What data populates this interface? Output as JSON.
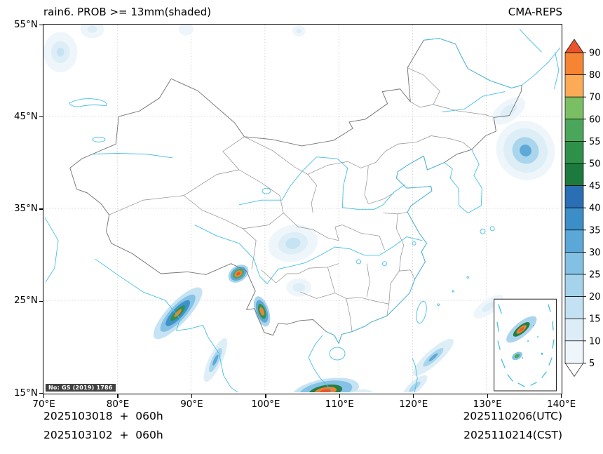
{
  "header": {
    "title": "rain6. PROB >= 13mm(shaded)",
    "source": "CMA-REPS"
  },
  "footer": {
    "init_line1": "2025103018  +  060h",
    "init_line2": "2025103102  +  060h",
    "valid_utc": "2025110206(UTC)",
    "valid_cst": "2025110214(CST)"
  },
  "map": {
    "license_label": "No: GS (2019) 1786"
  },
  "axes": {
    "x_tick_labels": [
      "70°E",
      "80°E",
      "90°E",
      "100°E",
      "110°E",
      "120°E",
      "130°E",
      "140°E"
    ],
    "x_tick_values": [
      70,
      80,
      90,
      100,
      110,
      120,
      130,
      140
    ],
    "y_tick_labels": [
      "55°N",
      "45°N",
      "35°N",
      "25°N",
      "15°N"
    ],
    "y_tick_values": [
      55,
      45,
      35,
      25,
      15
    ],
    "lon_range": [
      70,
      140
    ],
    "lat_range": [
      15,
      55
    ]
  },
  "colorbar": {
    "tick_labels_top_to_bottom": [
      "90",
      "80",
      "70",
      "60",
      "55",
      "50",
      "45",
      "40",
      "35",
      "30",
      "25",
      "20",
      "15",
      "10",
      "5"
    ],
    "patch_colors_top_to_bottom": [
      "#e8542c",
      "#f58433",
      "#fbaa55",
      "#7abf63",
      "#4aa65a",
      "#2e9149",
      "#1d7a3e",
      "#2a6eb4",
      "#3c8ec8",
      "#5ba7d8",
      "#82c0e4",
      "#a5d3ec",
      "#c3e1f2",
      "#dcedf7",
      "#eef6fb",
      "#ffffff"
    ]
  },
  "chart_data": {
    "type": "heatmap",
    "subtype": "geographic-probability-shading",
    "title": "rain6. PROB >= 13mm(shaded)",
    "model": "CMA-REPS",
    "lon_range": [
      70,
      140
    ],
    "lat_range": [
      15,
      55
    ],
    "prob_levels": [
      5,
      10,
      15,
      20,
      25,
      30,
      35,
      40,
      45,
      50,
      55,
      60,
      70,
      80,
      90
    ],
    "level_colors": {
      "5": "#eef6fb",
      "10": "#dcedf7",
      "15": "#c3e1f2",
      "20": "#a5d3ec",
      "25": "#82c0e4",
      "30": "#5ba7d8",
      "35": "#3c8ec8",
      "40": "#2a6eb4",
      "45": "#1d7a3e",
      "50": "#2e9149",
      "55": "#4aa65a",
      "60": "#7abf63",
      "70": "#fbaa55",
      "80": "#f58433",
      "90": "#e8542c"
    },
    "regions": [
      {
        "name": "himalaya-band",
        "center_lon": 88.2,
        "center_lat": 23.6,
        "rx_deg": 4.6,
        "ry_deg": 1.15,
        "rot_deg": -47,
        "max_prob": 80,
        "layers": [
          {
            "level": 15,
            "s": 1
          },
          {
            "level": 25,
            "s": 0.72
          },
          {
            "level": 35,
            "s": 0.5
          },
          {
            "level": 50,
            "s": 0.3
          },
          {
            "level": 80,
            "s": 0.15
          }
        ]
      },
      {
        "name": "se-tibet-cell",
        "center_lon": 96.4,
        "center_lat": 27.9,
        "rx_deg": 1.5,
        "ry_deg": 0.85,
        "rot_deg": -35,
        "max_prob": 90,
        "layers": [
          {
            "level": 20,
            "s": 1
          },
          {
            "level": 30,
            "s": 0.78
          },
          {
            "level": 55,
            "s": 0.55
          },
          {
            "level": 80,
            "s": 0.36
          },
          {
            "level": 90,
            "s": 0.18
          }
        ]
      },
      {
        "name": "yunnan-cell",
        "center_lon": 99.6,
        "center_lat": 23.8,
        "rx_deg": 0.95,
        "ry_deg": 1.7,
        "rot_deg": -18,
        "max_prob": 80,
        "layers": [
          {
            "level": 20,
            "s": 1
          },
          {
            "level": 30,
            "s": 0.75
          },
          {
            "level": 50,
            "s": 0.5
          },
          {
            "level": 80,
            "s": 0.28
          }
        ]
      },
      {
        "name": "central-china-faint",
        "center_lon": 103.8,
        "center_lat": 31.2,
        "rx_deg": 3.4,
        "ry_deg": 2.0,
        "rot_deg": -12,
        "max_prob": 15,
        "layers": [
          {
            "level": 5,
            "s": 1
          },
          {
            "level": 10,
            "s": 0.6
          },
          {
            "level": 15,
            "s": 0.3
          }
        ]
      },
      {
        "name": "guizhou-faint",
        "center_lon": 104.6,
        "center_lat": 26.4,
        "rx_deg": 1.7,
        "ry_deg": 1.0,
        "rot_deg": 0,
        "max_prob": 10,
        "layers": [
          {
            "level": 5,
            "s": 1
          },
          {
            "level": 10,
            "s": 0.5
          }
        ]
      },
      {
        "name": "south-china-sea-band",
        "center_lon": 108.2,
        "center_lat": 15.1,
        "rx_deg": 4.6,
        "ry_deg": 1.35,
        "rot_deg": -10,
        "max_prob": 90,
        "layers": [
          {
            "level": 15,
            "s": 1
          },
          {
            "level": 25,
            "s": 0.8
          },
          {
            "level": 45,
            "s": 0.5
          },
          {
            "level": 80,
            "s": 0.33
          },
          {
            "level": 90,
            "s": 0.17
          }
        ]
      },
      {
        "name": "myanmar-streak",
        "center_lon": 93.3,
        "center_lat": 18.5,
        "rx_deg": 0.9,
        "ry_deg": 2.6,
        "rot_deg": 25,
        "max_prob": 30,
        "layers": [
          {
            "level": 10,
            "s": 1
          },
          {
            "level": 20,
            "s": 0.55
          },
          {
            "level": 30,
            "s": 0.25
          }
        ]
      },
      {
        "name": "philippine-streak-1",
        "center_lon": 122.8,
        "center_lat": 18.8,
        "rx_deg": 3.6,
        "ry_deg": 0.8,
        "rot_deg": -42,
        "max_prob": 30,
        "layers": [
          {
            "level": 10,
            "s": 1
          },
          {
            "level": 20,
            "s": 0.5
          },
          {
            "level": 30,
            "s": 0.22
          }
        ]
      },
      {
        "name": "philippine-streak-2",
        "center_lon": 120.3,
        "center_lat": 15.6,
        "rx_deg": 2.2,
        "ry_deg": 0.6,
        "rot_deg": -42,
        "max_prob": 20,
        "layers": [
          {
            "level": 10,
            "s": 1
          },
          {
            "level": 20,
            "s": 0.45
          }
        ]
      },
      {
        "name": "scs-west-patch",
        "center_lon": 112.8,
        "center_lat": 14.3,
        "rx_deg": 2.1,
        "ry_deg": 0.95,
        "rot_deg": -15,
        "max_prob": 20,
        "layers": [
          {
            "level": 10,
            "s": 1
          },
          {
            "level": 20,
            "s": 0.5
          }
        ]
      },
      {
        "name": "northeast-area",
        "center_lon": 135.3,
        "center_lat": 41.3,
        "rx_deg": 3.9,
        "ry_deg": 3.3,
        "rot_deg": -40,
        "max_prob": 30,
        "layers": [
          {
            "level": 5,
            "s": 1
          },
          {
            "level": 10,
            "s": 0.75
          },
          {
            "level": 20,
            "s": 0.45
          },
          {
            "level": 30,
            "s": 0.2
          }
        ]
      },
      {
        "name": "northeast-streak",
        "center_lon": 133.0,
        "center_lat": 45.6,
        "rx_deg": 2.6,
        "ry_deg": 1.1,
        "rot_deg": -35,
        "max_prob": 10,
        "layers": [
          {
            "level": 5,
            "s": 1
          },
          {
            "level": 10,
            "s": 0.5
          }
        ]
      },
      {
        "name": "kazakh-patch-1",
        "center_lon": 72.3,
        "center_lat": 52.0,
        "rx_deg": 2.3,
        "ry_deg": 2.2,
        "rot_deg": 0,
        "max_prob": 15,
        "layers": [
          {
            "level": 5,
            "s": 1
          },
          {
            "level": 10,
            "s": 0.55
          },
          {
            "level": 15,
            "s": 0.22
          }
        ]
      },
      {
        "name": "kazakh-patch-2",
        "center_lon": 76.6,
        "center_lat": 54.5,
        "rx_deg": 1.6,
        "ry_deg": 1.0,
        "rot_deg": 0,
        "max_prob": 10,
        "layers": [
          {
            "level": 5,
            "s": 1
          },
          {
            "level": 10,
            "s": 0.4
          }
        ]
      },
      {
        "name": "altai-speck",
        "center_lon": 89.3,
        "center_lat": 54.5,
        "rx_deg": 1.0,
        "ry_deg": 0.7,
        "rot_deg": 0,
        "max_prob": 5,
        "layers": [
          {
            "level": 5,
            "s": 1
          }
        ]
      },
      {
        "name": "top-speck",
        "center_lon": 104.6,
        "center_lat": 54.3,
        "rx_deg": 0.9,
        "ry_deg": 0.6,
        "rot_deg": 0,
        "max_prob": 10,
        "layers": [
          {
            "level": 5,
            "s": 1
          },
          {
            "level": 10,
            "s": 0.4
          }
        ]
      },
      {
        "name": "ryukyu-faint",
        "center_lon": 130.3,
        "center_lat": 24.3,
        "rx_deg": 2.4,
        "ry_deg": 0.8,
        "rot_deg": -35,
        "max_prob": 10,
        "layers": [
          {
            "level": 5,
            "s": 1
          },
          {
            "level": 10,
            "s": 0.45
          }
        ]
      }
    ],
    "inset": {
      "regions": [
        {
          "name": "inset-band",
          "fx": 0.44,
          "fy": 0.33,
          "rxp": 27,
          "ryp": 10,
          "rot_deg": -40,
          "max_prob": 90,
          "layers": [
            {
              "level": 20,
              "s": 1
            },
            {
              "level": 45,
              "s": 0.55
            },
            {
              "level": 80,
              "s": 0.33
            },
            {
              "level": 90,
              "s": 0.16
            }
          ]
        },
        {
          "name": "inset-spot",
          "fx": 0.37,
          "fy": 0.62,
          "rxp": 8,
          "ryp": 5,
          "rot_deg": -30,
          "max_prob": 55,
          "layers": [
            {
              "level": 25,
              "s": 1
            },
            {
              "level": 55,
              "s": 0.5
            }
          ]
        }
      ]
    }
  }
}
